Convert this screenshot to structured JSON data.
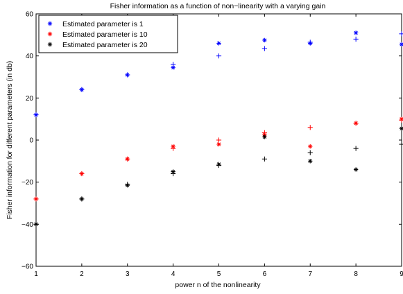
{
  "chart_data": {
    "type": "scatter",
    "title": "Fisher information as a function of non−linearity with a varying gain",
    "xlabel": "power  n  of the nonlinearity",
    "ylabel": "Fisher information for different parameters (in db)",
    "xlim": [
      1,
      9
    ],
    "ylim": [
      -60,
      60
    ],
    "xticks": [
      "1",
      "2",
      "3",
      "4",
      "5",
      "6",
      "7",
      "8",
      "9"
    ],
    "yticks": [
      "−60",
      "−40",
      "−20",
      "0",
      "20",
      "40",
      "60"
    ],
    "grid": false,
    "legend_position": "top-left",
    "series": [
      {
        "name": "Estimated parameter is 1",
        "color": "#0000ff",
        "star": [
          [
            1,
            12
          ],
          [
            2,
            24
          ],
          [
            3,
            31
          ],
          [
            4,
            34.5
          ],
          [
            5,
            46
          ],
          [
            6,
            47.5
          ],
          [
            7,
            46
          ],
          [
            8,
            51
          ],
          [
            9,
            45.5
          ]
        ],
        "plus": [
          [
            1,
            12
          ],
          [
            2,
            24
          ],
          [
            3,
            31
          ],
          [
            4,
            36
          ],
          [
            5,
            40
          ],
          [
            6,
            43.5
          ],
          [
            7,
            46.5
          ],
          [
            8,
            48
          ],
          [
            9,
            50.5
          ]
        ]
      },
      {
        "name": "Estimated parameter is 10",
        "color": "#ff0000",
        "star": [
          [
            1,
            -28
          ],
          [
            2,
            -16
          ],
          [
            3,
            -9
          ],
          [
            4,
            -3
          ],
          [
            5,
            -2
          ],
          [
            6,
            2.5
          ],
          [
            7,
            -3
          ],
          [
            8,
            8
          ],
          [
            9,
            10
          ]
        ],
        "plus": [
          [
            1,
            -28
          ],
          [
            2,
            -16
          ],
          [
            3,
            -9
          ],
          [
            4,
            -4
          ],
          [
            5,
            0
          ],
          [
            6,
            3.5
          ],
          [
            7,
            6
          ],
          [
            8,
            8
          ],
          [
            9,
            9.5
          ]
        ]
      },
      {
        "name": "Estimated parameter is 20",
        "color": "#000000",
        "star": [
          [
            1,
            -40
          ],
          [
            2,
            -28
          ],
          [
            3,
            -21.5
          ],
          [
            4,
            -15
          ],
          [
            5,
            -11.5
          ],
          [
            6,
            1.5
          ],
          [
            7,
            -10
          ],
          [
            8,
            -14
          ],
          [
            9,
            5.5
          ]
        ],
        "plus": [
          [
            1,
            -40
          ],
          [
            2,
            -28
          ],
          [
            3,
            -21
          ],
          [
            4,
            -16
          ],
          [
            5,
            -12
          ],
          [
            6,
            -9
          ],
          [
            7,
            -6
          ],
          [
            8,
            -4
          ],
          [
            9,
            -2
          ]
        ]
      }
    ]
  }
}
